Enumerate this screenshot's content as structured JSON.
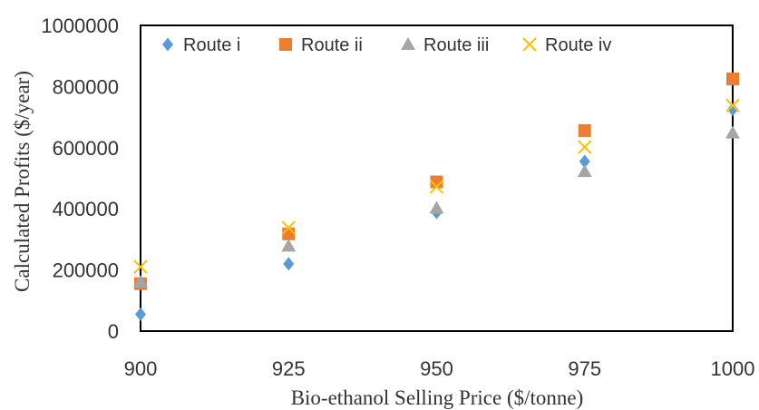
{
  "chart_data": {
    "type": "scatter",
    "xlabel": "Bio-ethanol Selling Price ($/tonne)",
    "ylabel": "Calculated Profits ($/year)",
    "xlim": [
      900,
      1000
    ],
    "ylim": [
      0,
      1000000
    ],
    "x_ticks": [
      "900",
      "925",
      "950",
      "975",
      "1000"
    ],
    "y_ticks": [
      "0",
      "200000",
      "400000",
      "600000",
      "800000",
      "1000000"
    ],
    "legend_position": "top-inside",
    "grid": false,
    "series": [
      {
        "name": "Route i",
        "marker": "diamond",
        "color": "#5B9BD5",
        "x": [
          900,
          925,
          950,
          975,
          1000
        ],
        "y": [
          55000,
          220000,
          388000,
          555000,
          725000
        ]
      },
      {
        "name": "Route ii",
        "marker": "square",
        "color": "#ED7D31",
        "x": [
          900,
          925,
          950,
          975,
          1000
        ],
        "y": [
          155000,
          318000,
          488000,
          656000,
          825000
        ]
      },
      {
        "name": "Route iii",
        "marker": "triangle",
        "color": "#A5A5A5",
        "x": [
          900,
          925,
          950,
          975,
          1000
        ],
        "y": [
          160000,
          278000,
          402000,
          522000,
          648000
        ]
      },
      {
        "name": "Route iv",
        "marker": "x",
        "color": "#FFC000",
        "x": [
          900,
          925,
          950,
          975,
          1000
        ],
        "y": [
          210000,
          338000,
          472000,
          602000,
          738000
        ]
      }
    ]
  }
}
